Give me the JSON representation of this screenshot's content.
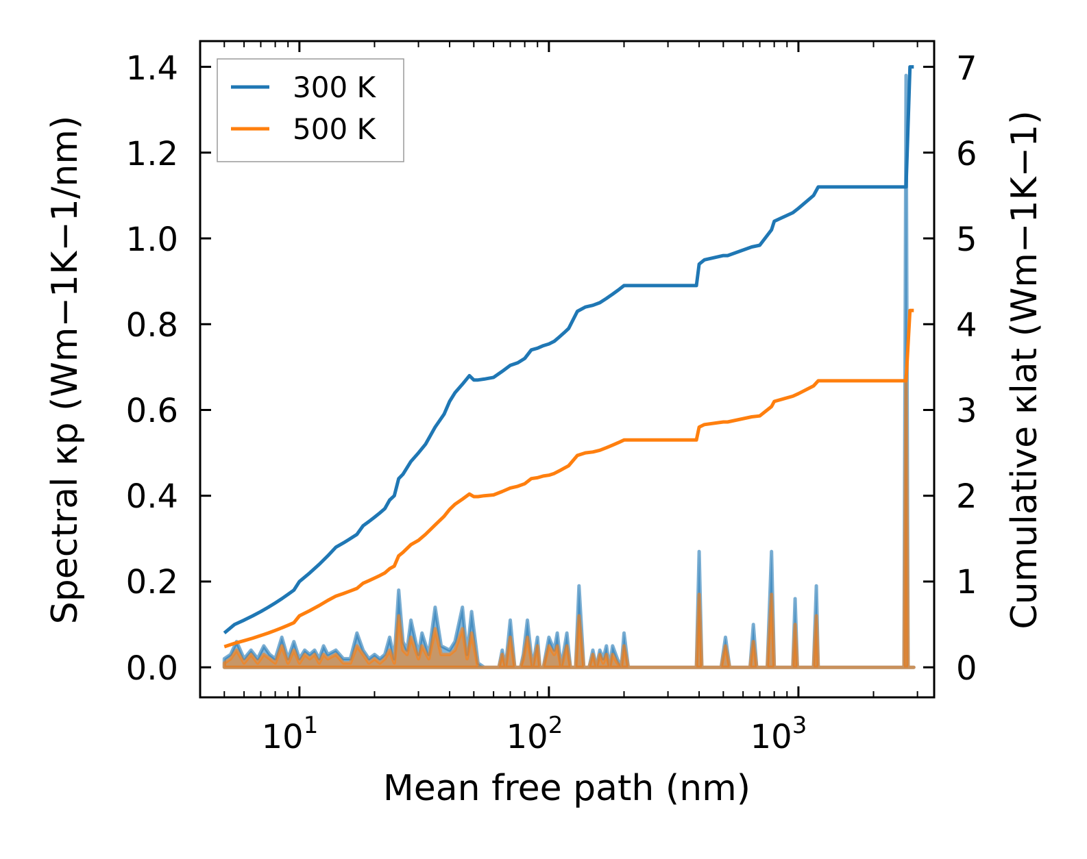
{
  "chart_data": {
    "type": "line",
    "title": "",
    "xlabel": "Mean free path (nm)",
    "ylabel_left": "Spectral κp (Wm−1K−1/nm)",
    "ylabel_right": "Cumulative κlat (Wm−1K−1)",
    "xscale": "log",
    "xlim": [
      4.0,
      3500
    ],
    "ylim_left": [
      -0.07,
      1.46
    ],
    "ylim_right": [
      -0.35,
      7.3
    ],
    "x_ticks": [
      {
        "base": "10",
        "exp": "1",
        "value": 10
      },
      {
        "base": "10",
        "exp": "2",
        "value": 100
      },
      {
        "base": "10",
        "exp": "3",
        "value": 1000
      }
    ],
    "y_ticks_left": [
      "0.0",
      "0.2",
      "0.4",
      "0.6",
      "0.8",
      "1.0",
      "1.2",
      "1.4"
    ],
    "y_ticks_right": [
      "0",
      "1",
      "2",
      "3",
      "4",
      "5",
      "6",
      "7"
    ],
    "legend": {
      "position": "top-left",
      "entries": [
        "300 K",
        "500 K"
      ]
    },
    "colors": {
      "300K": "#1f77b4",
      "500K": "#ff7f0e"
    },
    "cumulative_series": [
      {
        "name": "300 K",
        "axis": "right",
        "color": "#1f77b4",
        "x": [
          5,
          5.5,
          6,
          6.5,
          7,
          7.5,
          8,
          8.5,
          9,
          9.5,
          10,
          11,
          12,
          13,
          14,
          15,
          16,
          17,
          18,
          19,
          20,
          21,
          22,
          23,
          24,
          25,
          26,
          28,
          30,
          32,
          35,
          38,
          40,
          42,
          45,
          48,
          50,
          52,
          55,
          60,
          65,
          70,
          75,
          80,
          85,
          90,
          95,
          100,
          105,
          110,
          115,
          120,
          130,
          140,
          150,
          160,
          170,
          180,
          190,
          200,
          210,
          300,
          390,
          400,
          420,
          500,
          520,
          650,
          700,
          780,
          800,
          950,
          1000,
          1150,
          1200,
          1500,
          2700,
          2800,
          2900
        ],
        "y": [
          0.4,
          0.5,
          0.55,
          0.6,
          0.65,
          0.7,
          0.75,
          0.8,
          0.85,
          0.9,
          1.0,
          1.1,
          1.2,
          1.3,
          1.4,
          1.45,
          1.5,
          1.55,
          1.65,
          1.7,
          1.75,
          1.8,
          1.85,
          1.95,
          2.0,
          2.2,
          2.25,
          2.4,
          2.5,
          2.6,
          2.8,
          2.95,
          3.1,
          3.2,
          3.3,
          3.4,
          3.35,
          3.35,
          3.36,
          3.38,
          3.45,
          3.52,
          3.55,
          3.6,
          3.7,
          3.72,
          3.75,
          3.77,
          3.8,
          3.85,
          3.9,
          3.95,
          4.15,
          4.2,
          4.22,
          4.25,
          4.3,
          4.35,
          4.4,
          4.45,
          4.45,
          4.45,
          4.45,
          4.7,
          4.75,
          4.8,
          4.8,
          4.9,
          4.92,
          5.1,
          5.2,
          5.3,
          5.35,
          5.5,
          5.6,
          5.6,
          5.6,
          7.0,
          7.0
        ]
      },
      {
        "name": "500 K",
        "axis": "right",
        "color": "#ff7f0e",
        "x": [
          5,
          5.5,
          6,
          6.5,
          7,
          7.5,
          8,
          8.5,
          9,
          9.5,
          10,
          11,
          12,
          13,
          14,
          15,
          16,
          17,
          18,
          19,
          20,
          21,
          22,
          23,
          24,
          25,
          26,
          28,
          30,
          32,
          35,
          38,
          40,
          42,
          45,
          48,
          50,
          52,
          55,
          60,
          65,
          70,
          75,
          80,
          85,
          90,
          95,
          100,
          105,
          110,
          115,
          120,
          130,
          140,
          150,
          160,
          170,
          180,
          190,
          200,
          210,
          300,
          390,
          400,
          420,
          500,
          520,
          650,
          700,
          780,
          800,
          950,
          1000,
          1150,
          1200,
          1500,
          2700,
          2800,
          2900
        ],
        "y": [
          0.24,
          0.28,
          0.31,
          0.34,
          0.37,
          0.4,
          0.43,
          0.46,
          0.49,
          0.52,
          0.6,
          0.66,
          0.72,
          0.78,
          0.83,
          0.86,
          0.89,
          0.92,
          0.98,
          1.01,
          1.04,
          1.07,
          1.1,
          1.15,
          1.18,
          1.3,
          1.34,
          1.43,
          1.48,
          1.55,
          1.66,
          1.76,
          1.84,
          1.9,
          1.96,
          2.02,
          1.99,
          1.99,
          2.0,
          2.01,
          2.05,
          2.09,
          2.11,
          2.14,
          2.2,
          2.21,
          2.23,
          2.24,
          2.26,
          2.29,
          2.32,
          2.35,
          2.47,
          2.5,
          2.51,
          2.53,
          2.56,
          2.59,
          2.62,
          2.65,
          2.65,
          2.65,
          2.65,
          2.8,
          2.83,
          2.86,
          2.86,
          2.92,
          2.93,
          3.04,
          3.1,
          3.16,
          3.19,
          3.28,
          3.34,
          3.34,
          3.34,
          4.16,
          4.16
        ]
      }
    ],
    "spectral_series": [
      {
        "name": "300 K",
        "axis": "left",
        "color": "#1f77b4",
        "x": [
          5,
          5.3,
          5.6,
          6,
          6.4,
          6.8,
          7.2,
          7.6,
          8,
          8.5,
          9,
          9.5,
          10,
          10.5,
          11,
          11.5,
          12,
          12.5,
          13,
          14,
          15,
          16,
          17,
          18,
          19,
          20,
          21,
          22,
          23,
          24,
          25,
          26,
          27,
          28,
          30,
          31,
          33,
          35,
          37,
          40,
          42,
          45,
          47,
          49,
          52,
          55,
          60,
          63,
          65,
          67,
          70,
          73,
          77,
          79,
          82,
          86,
          90,
          92,
          95,
          100,
          105,
          108,
          112,
          118,
          122,
          128,
          132,
          138,
          145,
          150,
          155,
          160,
          165,
          170,
          175,
          180,
          188,
          195,
          200,
          208,
          215,
          380,
          390,
          400,
          410,
          420,
          490,
          510,
          530,
          640,
          660,
          680,
          750,
          780,
          800,
          830,
          950,
          970,
          990,
          1100,
          1150,
          1180,
          1200,
          1260,
          2650,
          2700,
          2750,
          2800,
          2850,
          2900
        ],
        "y": [
          0.02,
          0.03,
          0.06,
          0.02,
          0.04,
          0.02,
          0.05,
          0.03,
          0.02,
          0.07,
          0.02,
          0.06,
          0.02,
          0.04,
          0.03,
          0.04,
          0.02,
          0.05,
          0.03,
          0.04,
          0.02,
          0.02,
          0.08,
          0.04,
          0.02,
          0.03,
          0.02,
          0.03,
          0.07,
          0.02,
          0.18,
          0.06,
          0.04,
          0.11,
          0.03,
          0.08,
          0.03,
          0.14,
          0.05,
          0.04,
          0.06,
          0.14,
          0.03,
          0.13,
          0.01,
          0.0,
          0.0,
          0.0,
          0.04,
          0.0,
          0.11,
          0.0,
          0.0,
          0.03,
          0.11,
          0.0,
          0.07,
          0.0,
          0.0,
          0.07,
          0.04,
          0.08,
          0.0,
          0.08,
          0.0,
          0.0,
          0.19,
          0.0,
          0.0,
          0.04,
          0.0,
          0.04,
          0.02,
          0.05,
          0.0,
          0.05,
          0.02,
          0.0,
          0.08,
          0.0,
          0.0,
          0.0,
          0.0,
          0.27,
          0.0,
          0.0,
          0.0,
          0.07,
          0.0,
          0.0,
          0.1,
          0.0,
          0.0,
          0.27,
          0.0,
          0.0,
          0.0,
          0.16,
          0.0,
          0.0,
          0.0,
          0.19,
          0.0,
          0.0,
          0.0,
          1.38,
          0.0,
          0.0,
          0.0,
          0.0
        ]
      },
      {
        "name": "500 K",
        "axis": "left",
        "color": "#ff7f0e",
        "x": [
          5,
          5.3,
          5.6,
          6,
          6.4,
          6.8,
          7.2,
          7.6,
          8,
          8.5,
          9,
          9.5,
          10,
          10.5,
          11,
          11.5,
          12,
          12.5,
          13,
          14,
          15,
          16,
          17,
          18,
          19,
          20,
          21,
          22,
          23,
          24,
          25,
          26,
          27,
          28,
          30,
          31,
          33,
          35,
          37,
          40,
          42,
          45,
          47,
          49,
          52,
          55,
          60,
          63,
          65,
          67,
          70,
          73,
          77,
          79,
          82,
          86,
          90,
          92,
          95,
          100,
          105,
          108,
          112,
          118,
          122,
          128,
          132,
          138,
          145,
          150,
          155,
          160,
          165,
          170,
          175,
          180,
          188,
          195,
          200,
          208,
          215,
          380,
          390,
          400,
          410,
          420,
          490,
          510,
          530,
          640,
          660,
          680,
          750,
          780,
          800,
          830,
          950,
          970,
          990,
          1100,
          1150,
          1180,
          1200,
          1260,
          2650,
          2700,
          2750,
          2800,
          2850,
          2900
        ],
        "y": [
          0.01,
          0.02,
          0.04,
          0.01,
          0.03,
          0.01,
          0.03,
          0.02,
          0.01,
          0.05,
          0.01,
          0.04,
          0.01,
          0.03,
          0.02,
          0.03,
          0.01,
          0.03,
          0.02,
          0.03,
          0.01,
          0.01,
          0.05,
          0.03,
          0.01,
          0.02,
          0.01,
          0.02,
          0.04,
          0.01,
          0.12,
          0.04,
          0.03,
          0.07,
          0.02,
          0.05,
          0.02,
          0.09,
          0.03,
          0.03,
          0.04,
          0.09,
          0.02,
          0.08,
          0.0,
          0.0,
          0.0,
          0.0,
          0.03,
          0.0,
          0.07,
          0.0,
          0.0,
          0.02,
          0.07,
          0.0,
          0.05,
          0.0,
          0.0,
          0.05,
          0.03,
          0.05,
          0.0,
          0.05,
          0.0,
          0.0,
          0.12,
          0.0,
          0.0,
          0.03,
          0.0,
          0.03,
          0.01,
          0.03,
          0.0,
          0.03,
          0.01,
          0.0,
          0.05,
          0.0,
          0.0,
          0.0,
          0.0,
          0.17,
          0.0,
          0.0,
          0.0,
          0.05,
          0.0,
          0.0,
          0.06,
          0.0,
          0.0,
          0.17,
          0.0,
          0.0,
          0.0,
          0.1,
          0.0,
          0.0,
          0.0,
          0.12,
          0.0,
          0.0,
          0.0,
          0.68,
          0.0,
          0.0,
          0.0,
          0.0
        ]
      }
    ]
  }
}
